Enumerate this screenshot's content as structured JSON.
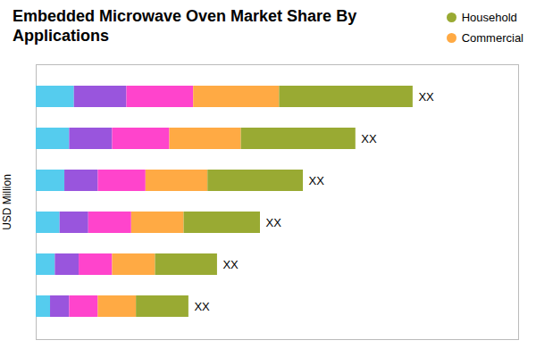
{
  "chart_data": {
    "type": "bar",
    "orientation": "horizontal",
    "stacked": true,
    "title": "Embedded Microwave Oven Market Share By\nApplications",
    "ylabel": "USD Million",
    "categories": [
      null,
      null,
      null,
      null,
      null,
      null
    ],
    "series": [
      {
        "color": "#55CCEE",
        "values": [
          8,
          7,
          6,
          5,
          4,
          3
        ]
      },
      {
        "color": "#9955DD",
        "values": [
          11,
          9,
          7,
          6,
          5,
          4
        ]
      },
      {
        "color": "#FF44CC",
        "values": [
          14,
          12,
          10,
          9,
          7,
          6
        ]
      },
      {
        "name": "Commercial",
        "color": "#FFAA44",
        "values": [
          18,
          15,
          13,
          11,
          9,
          8
        ]
      },
      {
        "name": "Household",
        "color": "#99AA33",
        "values": [
          28,
          24,
          20,
          16,
          13,
          11
        ]
      }
    ],
    "annotation": "XX",
    "xlim": [
      0,
      101.12
    ],
    "xticks": [],
    "grid": false,
    "legend": "upper right",
    "tick_labels": false
  }
}
